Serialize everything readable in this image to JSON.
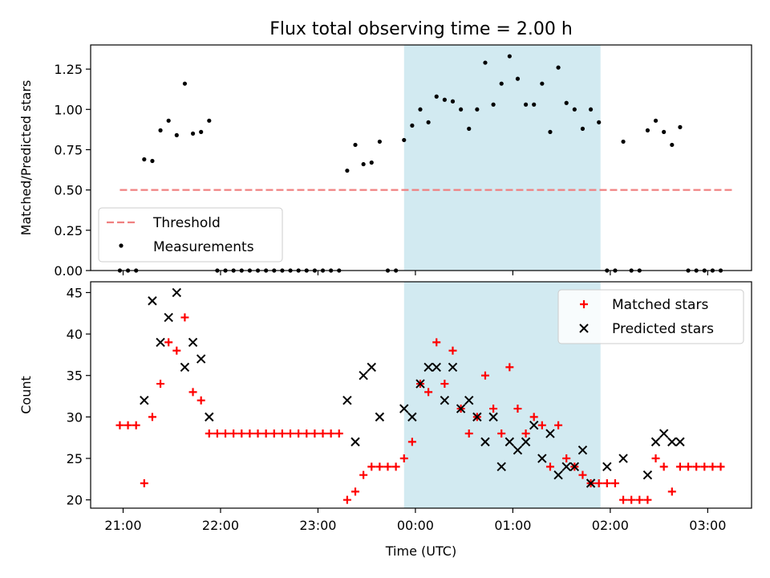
{
  "title": "Flux total observing time = 2.00 h",
  "colors": {
    "threshold": "#f08080",
    "measurement": "#000000",
    "matched": "#ff0000",
    "predicted": "#000000",
    "window": "#add8e6"
  },
  "chart_data": [
    {
      "type": "scatter",
      "id": "ratio",
      "title": "Flux total observing time = 2.00 h",
      "ylabel": "Matched/Predicted stars",
      "xlabel": "",
      "xlim": [
        "2024-01-01T20:40",
        "2024-01-02T03:27"
      ],
      "ylim": [
        0,
        1.4
      ],
      "yticks": [
        "0.00",
        "0.25",
        "0.50",
        "0.75",
        "1.00",
        "1.25"
      ],
      "xtick_labels_visible": false,
      "observing_window": [
        "2024-01-01T23:53",
        "2024-01-02T01:54"
      ],
      "legend": {
        "position": "lower-left",
        "entries": [
          "Threshold",
          "Measurements"
        ]
      },
      "threshold": {
        "name": "Threshold",
        "y": 0.5,
        "x_range": [
          "2024-01-01T20:58",
          "2024-01-02T03:16"
        ]
      },
      "series": [
        {
          "name": "Measurements",
          "points": [
            [
              "2024-01-01T20:58",
              0
            ],
            [
              "2024-01-01T21:03",
              0
            ],
            [
              "2024-01-01T21:08",
              0
            ],
            [
              "2024-01-01T21:13",
              0.69
            ],
            [
              "2024-01-01T21:18",
              0.68
            ],
            [
              "2024-01-01T21:23",
              0.87
            ],
            [
              "2024-01-01T21:28",
              0.93
            ],
            [
              "2024-01-01T21:33",
              0.84
            ],
            [
              "2024-01-01T21:38",
              1.16
            ],
            [
              "2024-01-01T21:43",
              0.85
            ],
            [
              "2024-01-01T21:48",
              0.86
            ],
            [
              "2024-01-01T21:53",
              0.93
            ],
            [
              "2024-01-01T21:58",
              0
            ],
            [
              "2024-01-01T22:03",
              0
            ],
            [
              "2024-01-01T22:08",
              0
            ],
            [
              "2024-01-01T22:13",
              0
            ],
            [
              "2024-01-01T22:18",
              0
            ],
            [
              "2024-01-01T22:23",
              0
            ],
            [
              "2024-01-01T22:28",
              0
            ],
            [
              "2024-01-01T22:33",
              0
            ],
            [
              "2024-01-01T22:38",
              0
            ],
            [
              "2024-01-01T22:43",
              0
            ],
            [
              "2024-01-01T22:48",
              0
            ],
            [
              "2024-01-01T22:53",
              0
            ],
            [
              "2024-01-01T22:58",
              0
            ],
            [
              "2024-01-01T23:03",
              0
            ],
            [
              "2024-01-01T23:08",
              0
            ],
            [
              "2024-01-01T23:13",
              0
            ],
            [
              "2024-01-01T23:18",
              0.62
            ],
            [
              "2024-01-01T23:23",
              0.78
            ],
            [
              "2024-01-01T23:28",
              0.66
            ],
            [
              "2024-01-01T23:33",
              0.67
            ],
            [
              "2024-01-01T23:38",
              0.8
            ],
            [
              "2024-01-01T23:43",
              0
            ],
            [
              "2024-01-01T23:48",
              0
            ],
            [
              "2024-01-01T23:53",
              0.81
            ],
            [
              "2024-01-01T23:58",
              0.9
            ],
            [
              "2024-01-02T00:03",
              1.0
            ],
            [
              "2024-01-02T00:08",
              0.92
            ],
            [
              "2024-01-02T00:13",
              1.08
            ],
            [
              "2024-01-02T00:18",
              1.06
            ],
            [
              "2024-01-02T00:23",
              1.05
            ],
            [
              "2024-01-02T00:28",
              1.0
            ],
            [
              "2024-01-02T00:33",
              0.88
            ],
            [
              "2024-01-02T00:38",
              1.0
            ],
            [
              "2024-01-02T00:43",
              1.29
            ],
            [
              "2024-01-02T00:48",
              1.03
            ],
            [
              "2024-01-02T00:53",
              1.16
            ],
            [
              "2024-01-02T00:58",
              1.33
            ],
            [
              "2024-01-02T01:03",
              1.19
            ],
            [
              "2024-01-02T01:08",
              1.03
            ],
            [
              "2024-01-02T01:13",
              1.03
            ],
            [
              "2024-01-02T01:18",
              1.16
            ],
            [
              "2024-01-02T01:23",
              0.86
            ],
            [
              "2024-01-02T01:28",
              1.26
            ],
            [
              "2024-01-02T01:33",
              1.04
            ],
            [
              "2024-01-02T01:38",
              1.0
            ],
            [
              "2024-01-02T01:43",
              0.88
            ],
            [
              "2024-01-02T01:48",
              1.0
            ],
            [
              "2024-01-02T01:53",
              0.92
            ],
            [
              "2024-01-02T01:58",
              0
            ],
            [
              "2024-01-02T02:03",
              0
            ],
            [
              "2024-01-02T02:08",
              0.8
            ],
            [
              "2024-01-02T02:13",
              0
            ],
            [
              "2024-01-02T02:18",
              0
            ],
            [
              "2024-01-02T02:23",
              0.87
            ],
            [
              "2024-01-02T02:28",
              0.93
            ],
            [
              "2024-01-02T02:33",
              0.86
            ],
            [
              "2024-01-02T02:38",
              0.78
            ],
            [
              "2024-01-02T02:43",
              0.89
            ],
            [
              "2024-01-02T02:48",
              0
            ],
            [
              "2024-01-02T02:53",
              0
            ],
            [
              "2024-01-02T02:58",
              0
            ],
            [
              "2024-01-02T03:03",
              0
            ],
            [
              "2024-01-02T03:08",
              0
            ]
          ]
        }
      ]
    },
    {
      "type": "scatter",
      "id": "counts",
      "title": "",
      "ylabel": "Count",
      "xlabel": "Time (UTC)",
      "xlim": [
        "2024-01-01T20:40",
        "2024-01-02T03:27"
      ],
      "ylim": [
        19,
        46.3
      ],
      "yticks": [
        "20",
        "25",
        "30",
        "35",
        "40",
        "45"
      ],
      "xticks": [
        {
          "t": "2024-01-01T21:00",
          "label": "21:00"
        },
        {
          "t": "2024-01-01T22:00",
          "label": "22:00"
        },
        {
          "t": "2024-01-01T23:00",
          "label": "23:00"
        },
        {
          "t": "2024-01-02T00:00",
          "label": "00:00"
        },
        {
          "t": "2024-01-02T01:00",
          "label": "01:00"
        },
        {
          "t": "2024-01-02T02:00",
          "label": "02:00"
        },
        {
          "t": "2024-01-02T03:00",
          "label": "03:00"
        }
      ],
      "observing_window": [
        "2024-01-01T23:53",
        "2024-01-02T01:54"
      ],
      "legend": {
        "position": "top-right",
        "entries": [
          "Matched stars",
          "Predicted stars"
        ]
      },
      "series": [
        {
          "name": "Matched stars",
          "marker": "plus",
          "points": [
            [
              "2024-01-01T20:58",
              29
            ],
            [
              "2024-01-01T21:03",
              29
            ],
            [
              "2024-01-01T21:08",
              29
            ],
            [
              "2024-01-01T21:13",
              22
            ],
            [
              "2024-01-01T21:18",
              30
            ],
            [
              "2024-01-01T21:23",
              34
            ],
            [
              "2024-01-01T21:28",
              39
            ],
            [
              "2024-01-01T21:33",
              38
            ],
            [
              "2024-01-01T21:38",
              42
            ],
            [
              "2024-01-01T21:43",
              33
            ],
            [
              "2024-01-01T21:48",
              32
            ],
            [
              "2024-01-01T21:53",
              28
            ],
            [
              "2024-01-01T21:58",
              28
            ],
            [
              "2024-01-01T22:03",
              28
            ],
            [
              "2024-01-01T22:08",
              28
            ],
            [
              "2024-01-01T22:13",
              28
            ],
            [
              "2024-01-01T22:18",
              28
            ],
            [
              "2024-01-01T22:23",
              28
            ],
            [
              "2024-01-01T22:28",
              28
            ],
            [
              "2024-01-01T22:33",
              28
            ],
            [
              "2024-01-01T22:38",
              28
            ],
            [
              "2024-01-01T22:43",
              28
            ],
            [
              "2024-01-01T22:48",
              28
            ],
            [
              "2024-01-01T22:53",
              28
            ],
            [
              "2024-01-01T22:58",
              28
            ],
            [
              "2024-01-01T23:03",
              28
            ],
            [
              "2024-01-01T23:08",
              28
            ],
            [
              "2024-01-01T23:13",
              28
            ],
            [
              "2024-01-01T23:18",
              20
            ],
            [
              "2024-01-01T23:23",
              21
            ],
            [
              "2024-01-01T23:28",
              23
            ],
            [
              "2024-01-01T23:33",
              24
            ],
            [
              "2024-01-01T23:38",
              24
            ],
            [
              "2024-01-01T23:43",
              24
            ],
            [
              "2024-01-01T23:48",
              24
            ],
            [
              "2024-01-01T23:53",
              25
            ],
            [
              "2024-01-01T23:58",
              27
            ],
            [
              "2024-01-02T00:03",
              34
            ],
            [
              "2024-01-02T00:08",
              33
            ],
            [
              "2024-01-02T00:13",
              39
            ],
            [
              "2024-01-02T00:18",
              34
            ],
            [
              "2024-01-02T00:23",
              38
            ],
            [
              "2024-01-02T00:28",
              31
            ],
            [
              "2024-01-02T00:33",
              28
            ],
            [
              "2024-01-02T00:38",
              30
            ],
            [
              "2024-01-02T00:43",
              35
            ],
            [
              "2024-01-02T00:48",
              31
            ],
            [
              "2024-01-02T00:53",
              28
            ],
            [
              "2024-01-02T00:58",
              36
            ],
            [
              "2024-01-02T01:03",
              31
            ],
            [
              "2024-01-02T01:08",
              28
            ],
            [
              "2024-01-02T01:13",
              30
            ],
            [
              "2024-01-02T01:18",
              29
            ],
            [
              "2024-01-02T01:23",
              24
            ],
            [
              "2024-01-02T01:28",
              29
            ],
            [
              "2024-01-02T01:33",
              25
            ],
            [
              "2024-01-02T01:38",
              24
            ],
            [
              "2024-01-02T01:43",
              23
            ],
            [
              "2024-01-02T01:48",
              22
            ],
            [
              "2024-01-02T01:53",
              22
            ],
            [
              "2024-01-02T01:58",
              22
            ],
            [
              "2024-01-02T02:03",
              22
            ],
            [
              "2024-01-02T02:08",
              20
            ],
            [
              "2024-01-02T02:13",
              20
            ],
            [
              "2024-01-02T02:18",
              20
            ],
            [
              "2024-01-02T02:23",
              20
            ],
            [
              "2024-01-02T02:28",
              25
            ],
            [
              "2024-01-02T02:33",
              24
            ],
            [
              "2024-01-02T02:38",
              21
            ],
            [
              "2024-01-02T02:43",
              24
            ],
            [
              "2024-01-02T02:48",
              24
            ],
            [
              "2024-01-02T02:53",
              24
            ],
            [
              "2024-01-02T02:58",
              24
            ],
            [
              "2024-01-02T03:03",
              24
            ],
            [
              "2024-01-02T03:08",
              24
            ]
          ]
        },
        {
          "name": "Predicted stars",
          "marker": "x",
          "points": [
            [
              "2024-01-01T21:13",
              32
            ],
            [
              "2024-01-01T21:18",
              44
            ],
            [
              "2024-01-01T21:23",
              39
            ],
            [
              "2024-01-01T21:28",
              42
            ],
            [
              "2024-01-01T21:33",
              45
            ],
            [
              "2024-01-01T21:38",
              36
            ],
            [
              "2024-01-01T21:43",
              39
            ],
            [
              "2024-01-01T21:48",
              37
            ],
            [
              "2024-01-01T21:53",
              30
            ],
            [
              "2024-01-01T23:18",
              32
            ],
            [
              "2024-01-01T23:23",
              27
            ],
            [
              "2024-01-01T23:28",
              35
            ],
            [
              "2024-01-01T23:33",
              36
            ],
            [
              "2024-01-01T23:38",
              30
            ],
            [
              "2024-01-01T23:53",
              31
            ],
            [
              "2024-01-01T23:58",
              30
            ],
            [
              "2024-01-02T00:03",
              34
            ],
            [
              "2024-01-02T00:08",
              36
            ],
            [
              "2024-01-02T00:13",
              36
            ],
            [
              "2024-01-02T00:18",
              32
            ],
            [
              "2024-01-02T00:23",
              36
            ],
            [
              "2024-01-02T00:28",
              31
            ],
            [
              "2024-01-02T00:33",
              32
            ],
            [
              "2024-01-02T00:38",
              30
            ],
            [
              "2024-01-02T00:43",
              27
            ],
            [
              "2024-01-02T00:48",
              30
            ],
            [
              "2024-01-02T00:53",
              24
            ],
            [
              "2024-01-02T00:58",
              27
            ],
            [
              "2024-01-02T01:03",
              26
            ],
            [
              "2024-01-02T01:08",
              27
            ],
            [
              "2024-01-02T01:13",
              29
            ],
            [
              "2024-01-02T01:18",
              25
            ],
            [
              "2024-01-02T01:23",
              28
            ],
            [
              "2024-01-02T01:28",
              23
            ],
            [
              "2024-01-02T01:33",
              24
            ],
            [
              "2024-01-02T01:38",
              24
            ],
            [
              "2024-01-02T01:43",
              26
            ],
            [
              "2024-01-02T01:48",
              22
            ],
            [
              "2024-01-02T01:58",
              24
            ],
            [
              "2024-01-02T02:08",
              25
            ],
            [
              "2024-01-02T02:23",
              23
            ],
            [
              "2024-01-02T02:28",
              27
            ],
            [
              "2024-01-02T02:33",
              28
            ],
            [
              "2024-01-02T02:38",
              27
            ],
            [
              "2024-01-02T02:43",
              27
            ]
          ]
        }
      ]
    }
  ]
}
